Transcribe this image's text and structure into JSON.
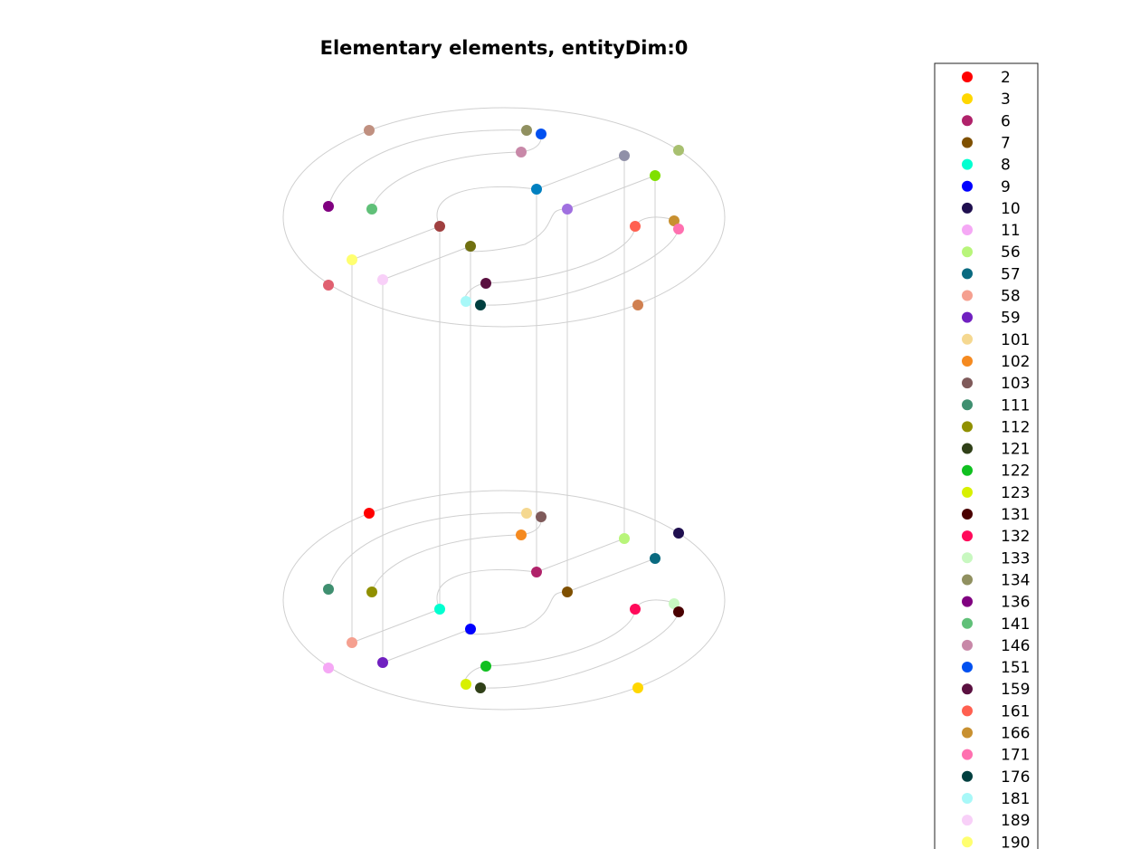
{
  "title": "Elementary elements, entityDim:0",
  "legend": {
    "entries": [
      {
        "label": "2",
        "color": "#ff0000"
      },
      {
        "label": "3",
        "color": "#ffd700"
      },
      {
        "label": "6",
        "color": "#b0226a"
      },
      {
        "label": "7",
        "color": "#7f5000"
      },
      {
        "label": "8",
        "color": "#00ffd0"
      },
      {
        "label": "9",
        "color": "#0000ff"
      },
      {
        "label": "10",
        "color": "#1f0f4f"
      },
      {
        "label": "11",
        "color": "#f5a8f5"
      },
      {
        "label": "56",
        "color": "#b8f57a"
      },
      {
        "label": "57",
        "color": "#0a6a80"
      },
      {
        "label": "58",
        "color": "#f5a090"
      },
      {
        "label": "59",
        "color": "#7020c0"
      },
      {
        "label": "101",
        "color": "#f5d890"
      },
      {
        "label": "102",
        "color": "#f58a20"
      },
      {
        "label": "103",
        "color": "#7f5a5a"
      },
      {
        "label": "111",
        "color": "#3f8f70"
      },
      {
        "label": "112",
        "color": "#909000"
      },
      {
        "label": "121",
        "color": "#304018"
      },
      {
        "label": "122",
        "color": "#10c020"
      },
      {
        "label": "123",
        "color": "#d8f000"
      },
      {
        "label": "131",
        "color": "#4a0000"
      },
      {
        "label": "132",
        "color": "#ff0a5a"
      },
      {
        "label": "133",
        "color": "#c8f8c0"
      },
      {
        "label": "134",
        "color": "#909060"
      },
      {
        "label": "136",
        "color": "#800080"
      },
      {
        "label": "141",
        "color": "#60c078"
      },
      {
        "label": "146",
        "color": "#c888a8"
      },
      {
        "label": "151",
        "color": "#0050f0"
      },
      {
        "label": "159",
        "color": "#5a1040"
      },
      {
        "label": "161",
        "color": "#ff6050"
      },
      {
        "label": "166",
        "color": "#c89030"
      },
      {
        "label": "171",
        "color": "#ff70b0"
      },
      {
        "label": "176",
        "color": "#003f3f"
      },
      {
        "label": "181",
        "color": "#a8f8f8"
      },
      {
        "label": "189",
        "color": "#f8d0f8"
      },
      {
        "label": "190",
        "color": "#ffff70"
      }
    ]
  }
}
